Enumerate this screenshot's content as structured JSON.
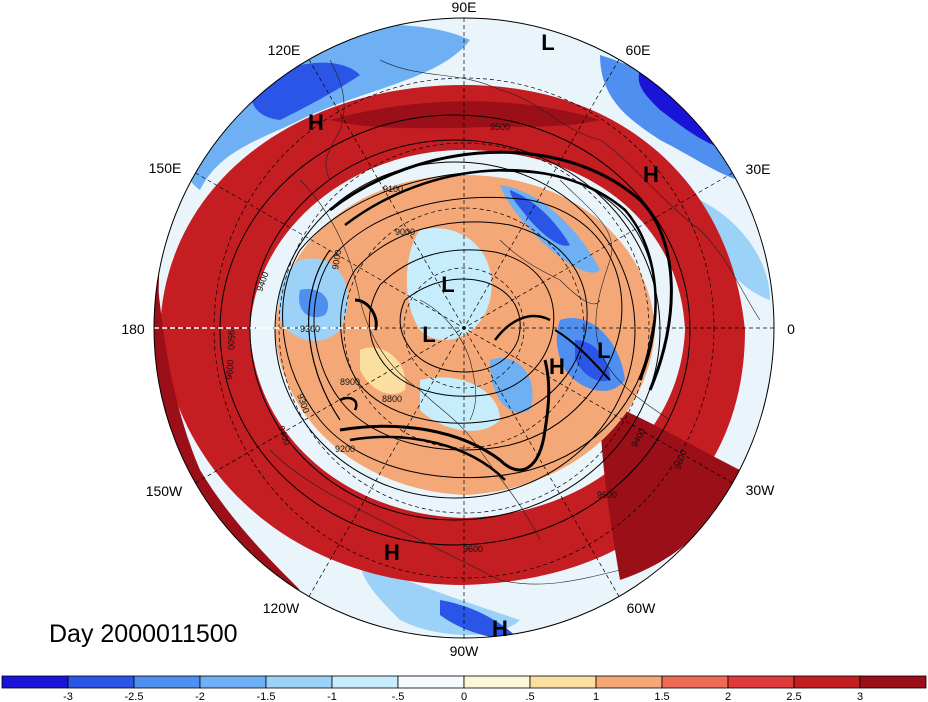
{
  "title": "Day 2000011500",
  "longitude_labels": [
    "90E",
    "60E",
    "30E",
    "0",
    "30W",
    "60W",
    "90W",
    "120W",
    "150W",
    "180",
    "150E",
    "120E"
  ],
  "pressure_systems": [
    {
      "label": "L",
      "lon": "90E"
    },
    {
      "label": "H",
      "lon": "120E"
    },
    {
      "label": "H",
      "lon": "30E"
    },
    {
      "label": "L",
      "lon": "150E"
    },
    {
      "label": "L",
      "lon": "170E"
    },
    {
      "label": "L",
      "lon": "0"
    },
    {
      "label": "H",
      "lon": "30W"
    },
    {
      "label": "H",
      "lon": "110W"
    },
    {
      "label": "H",
      "lon": "90W"
    }
  ],
  "contour_labels": [
    "9500",
    "9400",
    "9300",
    "9200",
    "9100",
    "9000",
    "8900",
    "8800",
    "9600"
  ],
  "colorbar": {
    "ticks": [
      "-3",
      "-2.5",
      "-2",
      "-1.5",
      "-1",
      "-.5",
      "0",
      ".5",
      "1",
      "1.5",
      "2",
      "2.5",
      "3"
    ],
    "colors": [
      "#1a14d9",
      "#2a55e6",
      "#4f8ff0",
      "#6fb0f5",
      "#9cd2f7",
      "#c7ecfb",
      "#f3fbfd",
      "#fdf6d8",
      "#fbdfa0",
      "#f5a877",
      "#ef6b56",
      "#e03a3a",
      "#c41d22",
      "#9b0f18"
    ]
  }
}
